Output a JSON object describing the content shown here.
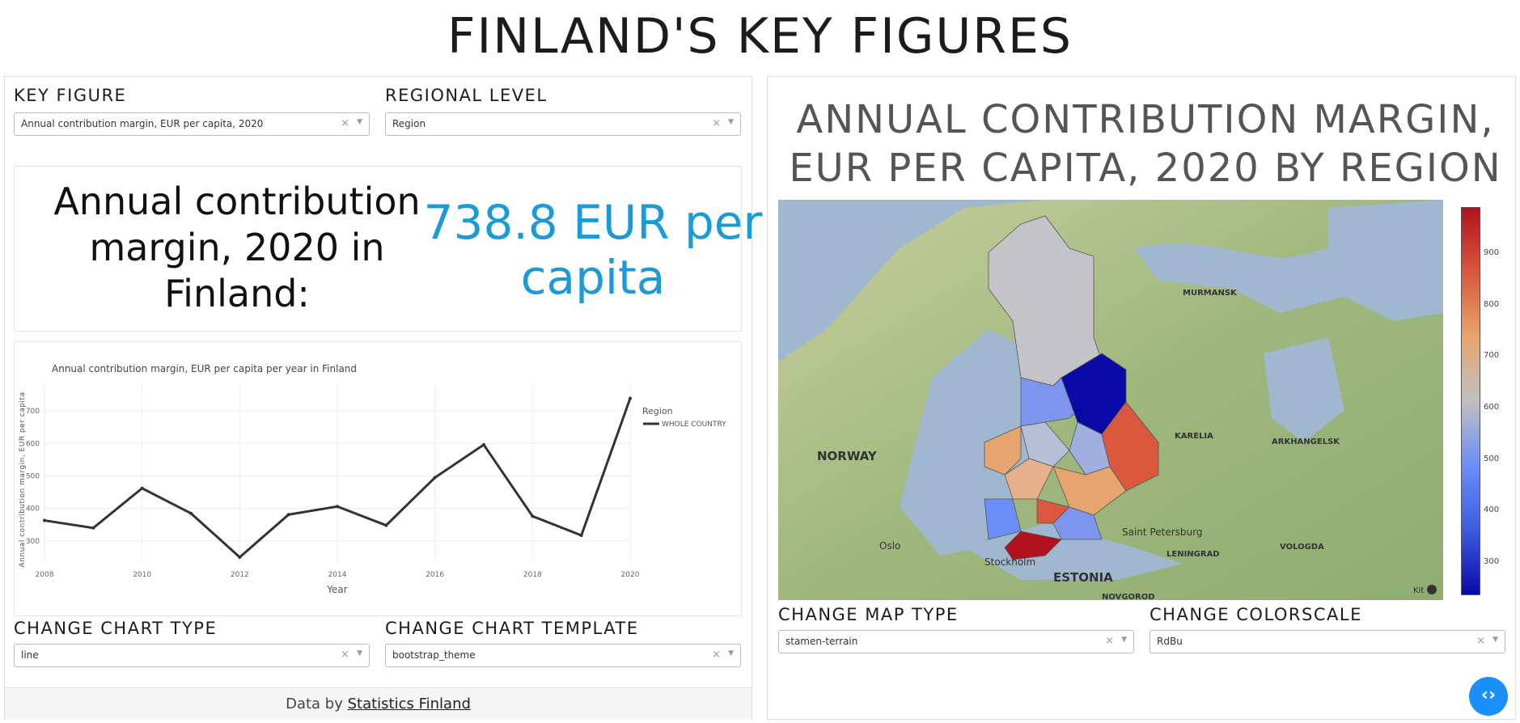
{
  "page_title": "FINLAND'S KEY FIGURES",
  "left": {
    "key_figure_label": "KEY FIGURE",
    "key_figure_value": "Annual contribution margin, EUR per capita, 2020",
    "regional_level_label": "REGIONAL LEVEL",
    "regional_level_value": "Region",
    "summary_text": "Annual contribution margin, 2020 in Finland:",
    "summary_value": "738.8 EUR per capita",
    "chart_type_label": "CHANGE CHART TYPE",
    "chart_type_value": "line",
    "chart_template_label": "CHANGE CHART TEMPLATE",
    "chart_template_value": "bootstrap_theme",
    "footer_prefix": "Data by",
    "footer_link": "Statistics Finland"
  },
  "chart_data": {
    "type": "line",
    "title": "Annual contribution margin, EUR per capita per year in Finland",
    "xlabel": "Year",
    "ylabel": "Annual contribution margin, EUR per capita",
    "x": [
      2008,
      2009,
      2010,
      2011,
      2012,
      2013,
      2014,
      2015,
      2016,
      2017,
      2018,
      2019,
      2020
    ],
    "x_ticks": [
      "2008",
      "2010",
      "2012",
      "2014",
      "2016",
      "2018",
      "2020"
    ],
    "y_ticks": [
      "300",
      "400",
      "500",
      "600",
      "700"
    ],
    "ylim": [
      235,
      760
    ],
    "legend_title": "Region",
    "legend_placement": "top-right",
    "series": [
      {
        "name": "WHOLE COUNTRY",
        "color": "#333333",
        "values": [
          363,
          340,
          462,
          385,
          250,
          381,
          406,
          348,
          495,
          596,
          376,
          317,
          738.8
        ]
      }
    ]
  },
  "right": {
    "map_title": "ANNUAL CONTRIBUTION MARGIN, EUR PER CAPITA, 2020 BY REGION",
    "map_labels": [
      "NORWAY",
      "ESTONIA",
      "MURMANSK",
      "KARELIA",
      "ARKHANGELSK",
      "Saint Petersburg",
      "Stockholm",
      "Oslo",
      "LENINGRAD",
      "VOLOGDA",
      "NOVGOROD"
    ],
    "colorbar_ticks": [
      "300",
      "400",
      "500",
      "600",
      "700",
      "800",
      "900"
    ],
    "colorscale": [
      "#0a0aa8",
      "#3d5ce0",
      "#6b8ef7",
      "#c0c0c0",
      "#e6a56e",
      "#d9583e",
      "#b2121f"
    ],
    "map_type_label": "CHANGE MAP TYPE",
    "map_type_value": "stamen-terrain",
    "colorscale_label": "CHANGE COLORSCALE",
    "colorscale_value": "RdBu",
    "attribution": "Kit"
  }
}
